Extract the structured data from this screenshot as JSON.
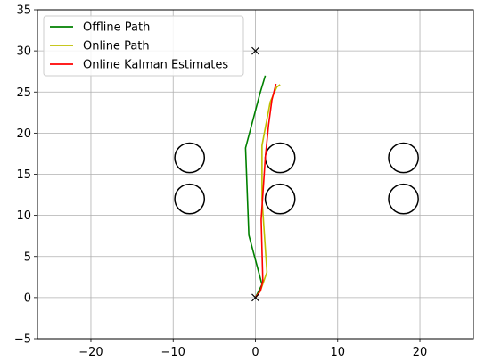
{
  "chart_data": {
    "type": "line",
    "title": "",
    "xlabel": "",
    "ylabel": "",
    "xlim": [
      -26.5,
      26.5
    ],
    "ylim": [
      -5,
      35
    ],
    "xticks": [
      -20,
      -10,
      0,
      10,
      20
    ],
    "yticks": [
      -5,
      0,
      5,
      10,
      15,
      20,
      25,
      30,
      35
    ],
    "grid": true,
    "legend_position": "top-left",
    "series": [
      {
        "name": "Offline Path",
        "color": "#008000",
        "points": [
          [
            0,
            0
          ],
          [
            0.4,
            0.8
          ],
          [
            0.8,
            1.6
          ],
          [
            -0.8,
            7.6
          ],
          [
            -1.2,
            18.2
          ],
          [
            0.6,
            25.0
          ],
          [
            1.2,
            27.0
          ]
        ]
      },
      {
        "name": "Online Path",
        "color": "#bfbf00",
        "points": [
          [
            0,
            0
          ],
          [
            0.6,
            0.8
          ],
          [
            1.4,
            3.1
          ],
          [
            0.8,
            12.0
          ],
          [
            0.8,
            18.5
          ],
          [
            1.8,
            23.8
          ],
          [
            2.6,
            25.6
          ],
          [
            3.0,
            25.9
          ]
        ]
      },
      {
        "name": "Online Kalman Estimates",
        "color": "#ff0000",
        "points": [
          [
            0,
            0
          ],
          [
            0.6,
            0.8
          ],
          [
            0.9,
            2.0
          ],
          [
            0.7,
            9.5
          ],
          [
            1.2,
            17.0
          ],
          [
            1.6,
            21.0
          ],
          [
            2.0,
            24.0
          ],
          [
            2.5,
            26.0
          ]
        ]
      }
    ],
    "markers": [
      {
        "symbol": "x",
        "x": 0,
        "y": 0
      },
      {
        "symbol": "x",
        "x": 0,
        "y": 30
      }
    ],
    "circles": [
      {
        "x": -8,
        "y": 17,
        "r": 1.8
      },
      {
        "x": 3,
        "y": 17,
        "r": 1.8
      },
      {
        "x": 18,
        "y": 17,
        "r": 1.8
      },
      {
        "x": -8,
        "y": 12,
        "r": 1.8
      },
      {
        "x": 3,
        "y": 12,
        "r": 1.8
      },
      {
        "x": 18,
        "y": 12,
        "r": 1.8
      }
    ]
  }
}
